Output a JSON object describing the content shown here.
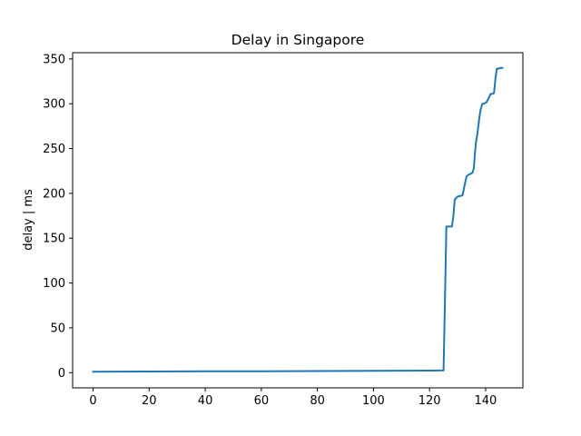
{
  "chart_data": {
    "type": "line",
    "title": "Delay in Singapore",
    "xlabel": "",
    "ylabel": "delay | ms",
    "xlim": [
      -7.3,
      153.3
    ],
    "ylim": [
      -16.95,
      356.95
    ],
    "xticks": [
      0,
      20,
      40,
      60,
      80,
      100,
      120,
      140
    ],
    "yticks": [
      0,
      50,
      100,
      150,
      200,
      250,
      300,
      350
    ],
    "grid": false,
    "legend": "none",
    "series": [
      {
        "color": "#1f77b4",
        "x": [
          0,
          20,
          40,
          60,
          80,
          100,
          120,
          125,
          125.5,
          126,
          127,
          127.5,
          128,
          128.5,
          129,
          129.8,
          130.5,
          131,
          131.8,
          132.5,
          133.2,
          134,
          134.8,
          135.3,
          135.8,
          136.2,
          136.6,
          137,
          137.4,
          137.8,
          138.2,
          138.8,
          139.4,
          140.4,
          141.2,
          141.8,
          142.4,
          143,
          143.5,
          144,
          144.5,
          145.3,
          146
        ],
        "y": [
          1,
          1.3,
          1.5,
          1.6,
          1.8,
          2,
          2.3,
          2.5,
          80,
          163,
          163,
          163,
          163,
          175,
          193,
          196,
          197,
          197,
          198,
          209,
          219,
          221,
          222,
          223,
          228,
          245,
          258,
          265,
          275,
          285,
          293,
          300,
          300,
          302,
          307,
          311,
          311,
          312,
          328,
          339,
          339,
          340,
          340
        ]
      }
    ]
  }
}
